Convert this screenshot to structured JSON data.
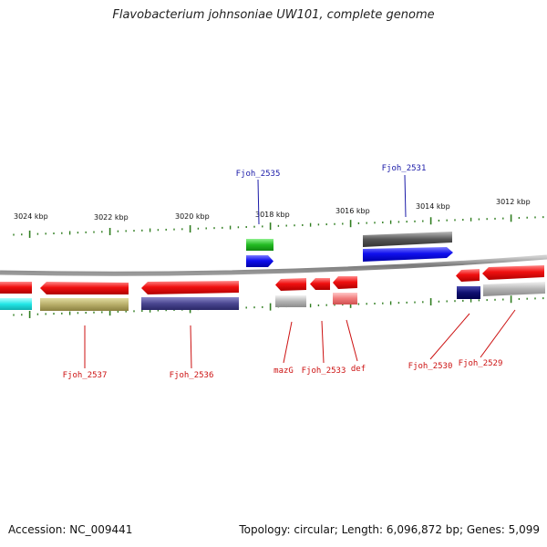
{
  "title": "Flavobacterium johnsoniae UW101, complete genome",
  "footer": {
    "accession": "Accession: NC_009441",
    "summary": "Topology: circular; Length: 6,096,872 bp; Genes: 5,099"
  },
  "colors": {
    "backbone": "#888888",
    "tick": "#2f7d1f",
    "label_forward": "#1a1aa8",
    "label_reverse": "#cc1111"
  },
  "scale_labels": [
    "3024 kbp",
    "3022 kbp",
    "3020 kbp",
    "3018 kbp",
    "3016 kbp",
    "3014 kbp",
    "3012 kbp"
  ],
  "gene_labels": {
    "fjoh_2535": "Fjoh_2535",
    "fjoh_2531": "Fjoh_2531",
    "fjoh_2537": "Fjoh_2537",
    "fjoh_2536": "Fjoh_2536",
    "mazG": "mazG",
    "fjoh_2533": "Fjoh_2533",
    "def": "def",
    "fjoh_2530": "Fjoh_2530",
    "fjoh_2529": "Fjoh_2529"
  }
}
